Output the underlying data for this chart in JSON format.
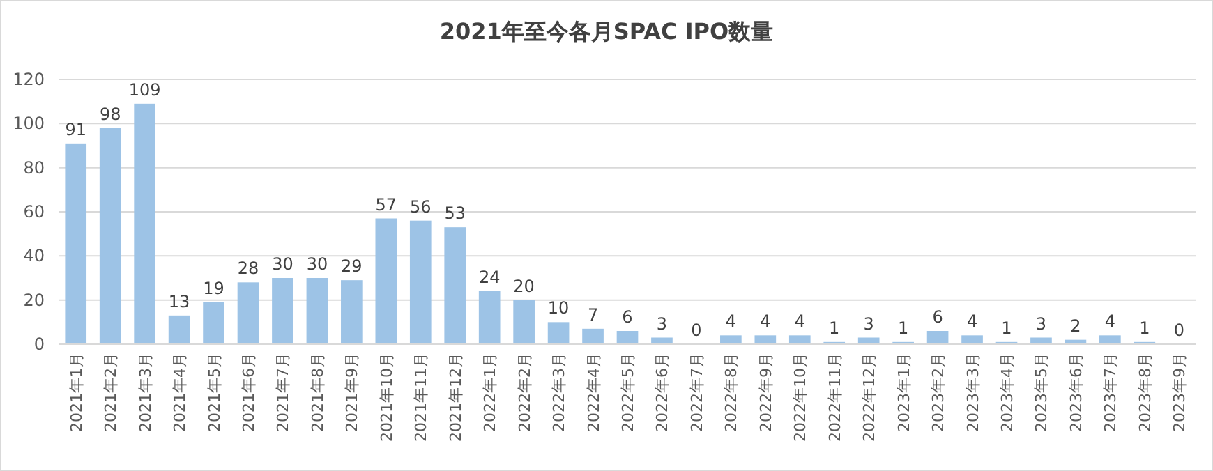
{
  "chart_data": {
    "type": "bar",
    "title": "2021年至今各月SPAC IPO数量",
    "categories": [
      "2021年1月",
      "2021年2月",
      "2021年3月",
      "2021年4月",
      "2021年5月",
      "2021年6月",
      "2021年7月",
      "2021年8月",
      "2021年9月",
      "2021年10月",
      "2021年11月",
      "2021年12月",
      "2022年1月",
      "2022年2月",
      "2022年3月",
      "2022年4月",
      "2022年5月",
      "2022年6月",
      "2022年7月",
      "2022年8月",
      "2022年9月",
      "2022年10月",
      "2022年11月",
      "2022年12月",
      "2023年1月",
      "2023年2月",
      "2023年3月",
      "2023年4月",
      "2023年5月",
      "2023年6月",
      "2023年7月",
      "2023年8月",
      "2023年9月"
    ],
    "values": [
      91,
      98,
      109,
      13,
      19,
      28,
      30,
      30,
      29,
      57,
      56,
      53,
      24,
      20,
      10,
      7,
      6,
      3,
      0,
      4,
      4,
      4,
      1,
      3,
      1,
      6,
      4,
      1,
      3,
      2,
      4,
      1,
      0
    ],
    "color": "#9dc3e6",
    "ylim": [
      0,
      120
    ],
    "yticks": [
      0,
      20,
      40,
      60,
      80,
      100,
      120
    ],
    "grid": "y",
    "data_labels": true
  }
}
